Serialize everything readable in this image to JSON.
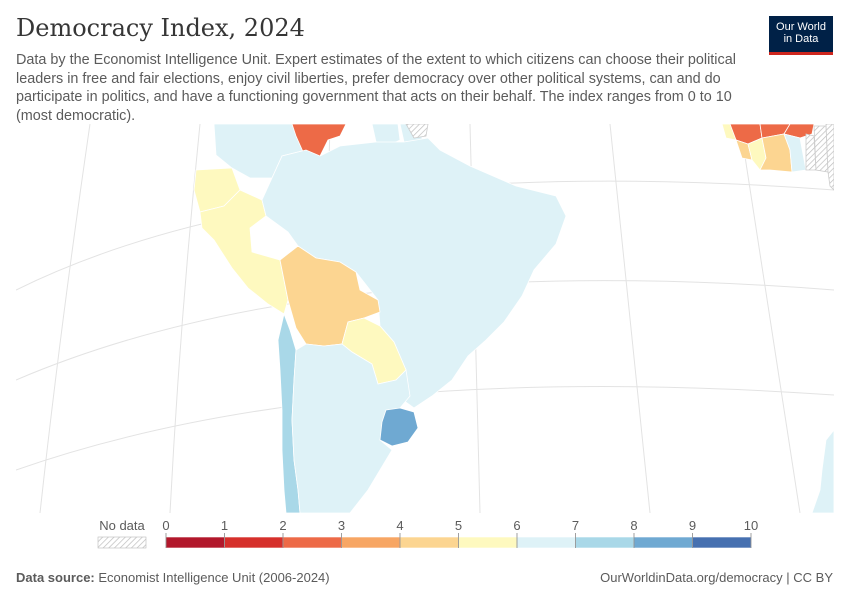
{
  "header": {
    "title": "Democracy Index, 2024",
    "subtitle": "Data by the Economist Intelligence Unit. Expert estimates of the extent to which citizens can choose their political leaders in free and fair elections, enjoy civil liberties, prefer democracy over other political systems, can and do participate in politics, and have a functioning government that acts on their behalf. The index ranges from 0 to 10 (most democratic).",
    "logo_line1": "Our World",
    "logo_line2": "in Data"
  },
  "legend": {
    "no_data_label": "No data",
    "ticks": [
      "0",
      "1",
      "2",
      "3",
      "4",
      "5",
      "6",
      "7",
      "8",
      "9",
      "10"
    ],
    "bins": [
      {
        "from": 0,
        "to": 1,
        "color": "#b2182b"
      },
      {
        "from": 1,
        "to": 2,
        "color": "#d6302b"
      },
      {
        "from": 2,
        "to": 3,
        "color": "#ed6a47"
      },
      {
        "from": 3,
        "to": 4,
        "color": "#f7a664"
      },
      {
        "from": 4,
        "to": 5,
        "color": "#fcd591"
      },
      {
        "from": 5,
        "to": 6,
        "color": "#fef9bf"
      },
      {
        "from": 6,
        "to": 7,
        "color": "#def2f7"
      },
      {
        "from": 7,
        "to": 8,
        "color": "#a9d8e8"
      },
      {
        "from": 8,
        "to": 9,
        "color": "#6fa9d2"
      },
      {
        "from": 9,
        "to": 10,
        "color": "#4670b0"
      }
    ]
  },
  "map": {
    "regions": [
      {
        "name": "Brazil",
        "bin": 6
      },
      {
        "name": "Argentina",
        "bin": 6
      },
      {
        "name": "Colombia",
        "bin": 6
      },
      {
        "name": "Guyana",
        "bin": 6
      },
      {
        "name": "Suriname",
        "bin": 6
      },
      {
        "name": "Chile",
        "bin": 7
      },
      {
        "name": "Uruguay",
        "bin": 8
      },
      {
        "name": "Peru",
        "bin": 5
      },
      {
        "name": "Ecuador",
        "bin": 5
      },
      {
        "name": "Paraguay",
        "bin": 5
      },
      {
        "name": "Bolivia",
        "bin": 4
      },
      {
        "name": "Venezuela",
        "bin": 2
      },
      {
        "name": "Mali",
        "bin": 2
      },
      {
        "name": "Burkina Faso",
        "bin": 2
      },
      {
        "name": "Guinea",
        "bin": 2
      },
      {
        "name": "Senegal",
        "bin": 5
      },
      {
        "name": "Ivory Coast",
        "bin": 4
      },
      {
        "name": "Ghana",
        "bin": 6
      },
      {
        "name": "Liberia",
        "bin": 5
      },
      {
        "name": "Sierra Leone",
        "bin": 4
      },
      {
        "name": "South Africa",
        "bin": 6
      }
    ]
  },
  "footer": {
    "source_label": "Data source:",
    "source_text": "Economist Intelligence Unit (2006-2024)",
    "right_text": "OurWorldinData.org/democracy | CC BY"
  }
}
